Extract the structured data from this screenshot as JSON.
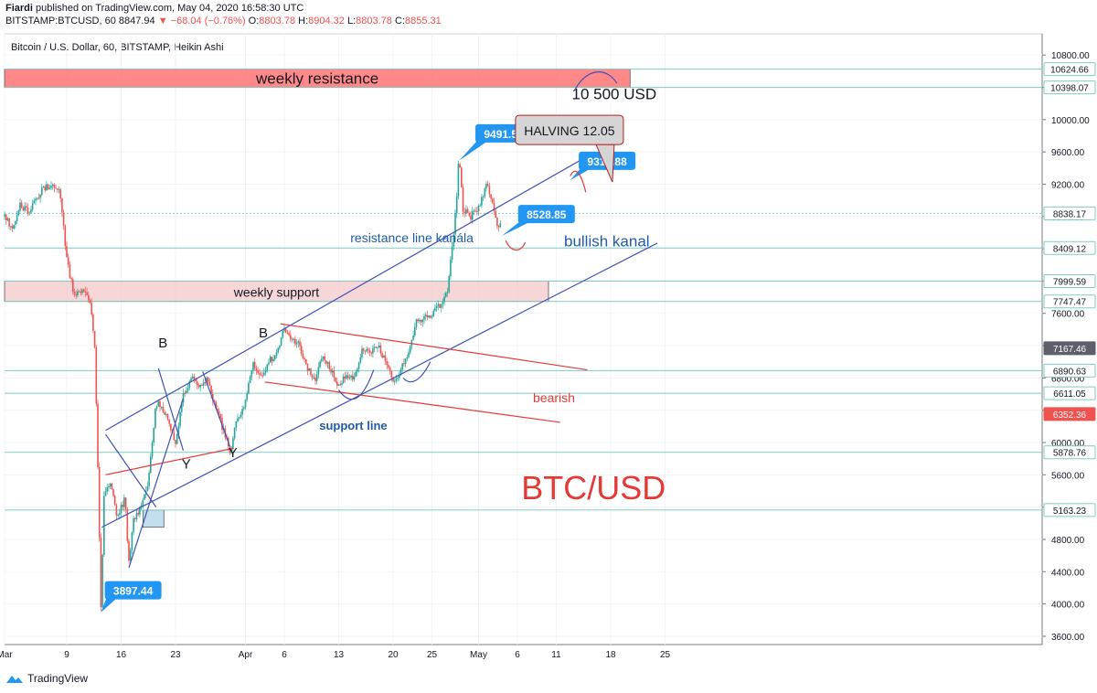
{
  "header": {
    "author": "Fiardi",
    "published": "published on TradingView.com, May 04, 2020 16:58:30 UTC",
    "symbol": "BITSTAMP:BTCUSD, 60",
    "last": "8847.94",
    "change": "▼ −68.04 (−0.76%)",
    "o_label": "O:",
    "o": "8803.78",
    "h_label": "H:",
    "h": "8904.32",
    "l_label": "L:",
    "l": "8803.78",
    "c_label": "C:",
    "c": "8855.31"
  },
  "footer": {
    "brand": "TradingView"
  },
  "chart_data": {
    "type": "candlestick",
    "title": "Bitcoin / U.S. Dollar, 60, BITSTAMP, Heikin Ashi",
    "colors": {
      "up": "#26a69a",
      "down": "#ef5350",
      "trend": "#3f51b5",
      "bear": "#e53935",
      "resistance": "#ff6b6b",
      "support": "#f4cccc",
      "level": "#80cbc4",
      "callout": "#2196f3"
    },
    "y_ticks": [
      3600,
      4000,
      4400,
      4800,
      5200,
      5600,
      6000,
      6400,
      6800,
      7200,
      7600,
      8000,
      8400,
      8800,
      9200,
      9600,
      10000,
      10400,
      10800
    ],
    "y_tick_labels": [
      "3600.00",
      "4000.00",
      "4400.00",
      "4800.00",
      "5200.00",
      "5600.00",
      "6000.00",
      "6400.00",
      "6800.00",
      "7200.00",
      "7600.00",
      "8000.00",
      "8400.00",
      "8800.00",
      "9200.00",
      "9600.00",
      "10000.00",
      "10400.00",
      "10800.00"
    ],
    "x_ticks": [
      {
        "day": 0,
        "label": "Mar"
      },
      {
        "day": 8,
        "label": "9"
      },
      {
        "day": 15,
        "label": "16"
      },
      {
        "day": 22,
        "label": "23"
      },
      {
        "day": 31,
        "label": "Apr"
      },
      {
        "day": 36,
        "label": "6"
      },
      {
        "day": 43,
        "label": "13"
      },
      {
        "day": 50,
        "label": "20"
      },
      {
        "day": 55,
        "label": "25"
      },
      {
        "day": 61,
        "label": "May"
      },
      {
        "day": 66,
        "label": "6"
      },
      {
        "day": 71,
        "label": "11"
      },
      {
        "day": 78,
        "label": "18"
      },
      {
        "day": 85,
        "label": "25"
      }
    ],
    "price_path": [
      [
        0,
        8800
      ],
      [
        1,
        8650
      ],
      [
        2,
        8950
      ],
      [
        3,
        8850
      ],
      [
        4,
        9000
      ],
      [
        5,
        9150
      ],
      [
        6,
        9200
      ],
      [
        7,
        9100
      ],
      [
        7.5,
        8800
      ],
      [
        8,
        8250
      ],
      [
        9,
        7800
      ],
      [
        10,
        7900
      ],
      [
        11,
        7750
      ],
      [
        11.6,
        7200
      ],
      [
        12,
        5700
      ],
      [
        12.4,
        3897
      ],
      [
        12.8,
        5300
      ],
      [
        13.5,
        5500
      ],
      [
        14.5,
        5100
      ],
      [
        15.5,
        5300
      ],
      [
        16,
        4500
      ],
      [
        16.5,
        5000
      ],
      [
        17.5,
        5200
      ],
      [
        18.5,
        5500
      ],
      [
        19.5,
        6500
      ],
      [
        20.5,
        6400
      ],
      [
        21.5,
        6100
      ],
      [
        22,
        6000
      ],
      [
        23,
        6600
      ],
      [
        24,
        6800
      ],
      [
        25,
        6700
      ],
      [
        26,
        6800
      ],
      [
        27,
        6500
      ],
      [
        28,
        6200
      ],
      [
        29,
        5900
      ],
      [
        30,
        6300
      ],
      [
        31,
        6500
      ],
      [
        32,
        7000
      ],
      [
        33,
        6800
      ],
      [
        34,
        7000
      ],
      [
        35,
        7100
      ],
      [
        36,
        7400
      ],
      [
        37,
        7300
      ],
      [
        38,
        7200
      ],
      [
        39,
        6900
      ],
      [
        40,
        6800
      ],
      [
        41,
        7100
      ],
      [
        42,
        6900
      ],
      [
        43,
        6700
      ],
      [
        44,
        6850
      ],
      [
        45,
        6800
      ],
      [
        46,
        7150
      ],
      [
        47,
        7100
      ],
      [
        48,
        7200
      ],
      [
        49,
        7000
      ],
      [
        50,
        6750
      ],
      [
        51,
        6900
      ],
      [
        52,
        7100
      ],
      [
        53,
        7500
      ],
      [
        54,
        7550
      ],
      [
        55,
        7600
      ],
      [
        56,
        7700
      ],
      [
        57,
        7850
      ],
      [
        58,
        8800
      ],
      [
        58.5,
        9491
      ],
      [
        59,
        8900
      ],
      [
        60,
        8800
      ],
      [
        61,
        8900
      ],
      [
        62,
        9200
      ],
      [
        63,
        8900
      ],
      [
        63.5,
        8620
      ],
      [
        64,
        8800
      ]
    ],
    "horizontal_levels": [
      {
        "price": 10624.66,
        "label": "10624.66",
        "color": "#80cbc4",
        "labelBg": "#ffffff",
        "labelFg": "#131722"
      },
      {
        "price": 10398.07,
        "label": "10398.07",
        "color": "#80cbc4",
        "labelBg": "#ffffff",
        "labelFg": "#131722"
      },
      {
        "price": 8838.17,
        "label": "8838.17",
        "color": "#80cbc4",
        "dashed": true,
        "labelBg": "#ffffff",
        "labelFg": "#131722"
      },
      {
        "price": 8409.12,
        "label": "8409.12",
        "color": "#80cbc4",
        "labelBg": "#ffffff",
        "labelFg": "#131722"
      },
      {
        "price": 7999.59,
        "label": "7999.59",
        "color": "#80cbc4",
        "labelBg": "#ffffff",
        "labelFg": "#131722"
      },
      {
        "price": 7747.47,
        "label": "7747.47",
        "color": "#80cbc4",
        "labelBg": "#ffffff",
        "labelFg": "#131722"
      },
      {
        "price": 7167.46,
        "label": "7167.46",
        "color": null,
        "labelBg": "#5d606b",
        "labelFg": "#ffffff"
      },
      {
        "price": 6890.63,
        "label": "6890.63",
        "color": "#80cbc4",
        "labelBg": "#ffffff",
        "labelFg": "#131722"
      },
      {
        "price": 6611.05,
        "label": "6611.05",
        "color": "#80cbc4",
        "labelBg": "#ffffff",
        "labelFg": "#131722"
      },
      {
        "price": 6352.36,
        "label": "6352.36",
        "color": null,
        "labelBg": "#ef5350",
        "labelFg": "#ffffff"
      },
      {
        "price": 5878.76,
        "label": "5878.76",
        "color": "#80cbc4",
        "labelBg": "#ffffff",
        "labelFg": "#131722"
      },
      {
        "price": 5163.23,
        "label": "5163.23",
        "color": "#80cbc4",
        "labelBg": "#ffffff",
        "labelFg": "#131722"
      }
    ],
    "zones": [
      {
        "name": "weekly resistance",
        "from_day": 0,
        "to_day": 80.5,
        "low": 10398.07,
        "high": 10624.66,
        "fill": "#ff6b6b",
        "text": "weekly resistance"
      },
      {
        "name": "weekly support",
        "from_day": 0,
        "to_day": 70,
        "low": 7747.47,
        "high": 7999.59,
        "fill": "#f4cccc",
        "text": "weekly support"
      },
      {
        "name": "base box",
        "from_day": 17.8,
        "to_day": 20.5,
        "low": 4950,
        "high": 5163.23,
        "fill": "#b3d4e8",
        "text": ""
      }
    ],
    "trend_lines": [
      {
        "name": "resistance line kanála",
        "points": [
          [
            13,
            6150
          ],
          [
            76,
            9600
          ]
        ],
        "color": "#3f51b5"
      },
      {
        "name": "support line",
        "points": [
          [
            12.5,
            4950
          ],
          [
            84,
            8470
          ]
        ],
        "color": "#3f51b5"
      },
      {
        "name": "bear-upper",
        "points": [
          [
            35.5,
            7470
          ],
          [
            75,
            6900
          ]
        ],
        "color": "#e53935"
      },
      {
        "name": "bear-lower",
        "points": [
          [
            33.5,
            6750
          ],
          [
            71.5,
            6250
          ]
        ],
        "color": "#e53935"
      },
      {
        "name": "mini-red",
        "points": [
          [
            13,
            5600
          ],
          [
            29.5,
            5930
          ]
        ],
        "color": "#e53935"
      },
      {
        "name": "mini-1",
        "points": [
          [
            13,
            6100
          ],
          [
            19.5,
            5200
          ]
        ],
        "color": "#3f51b5"
      },
      {
        "name": "mini-2",
        "points": [
          [
            16,
            4450
          ],
          [
            23,
            6550
          ]
        ],
        "color": "#3f51b5"
      },
      {
        "name": "mini-3",
        "points": [
          [
            19.8,
            6920
          ],
          [
            23,
            5900
          ]
        ],
        "color": "#3f51b5"
      },
      {
        "name": "mini-4",
        "points": [
          [
            25.5,
            6880
          ],
          [
            29,
            5950
          ]
        ],
        "color": "#3f51b5"
      }
    ],
    "annotations": [
      {
        "text": "B",
        "day": 19.8,
        "price": 7180,
        "color": "#131722",
        "size": 15
      },
      {
        "text": "B",
        "day": 32.7,
        "price": 7300,
        "color": "#131722",
        "size": 15
      },
      {
        "text": "Y",
        "day": 22.8,
        "price": 5680,
        "color": "#131722",
        "size": 15
      },
      {
        "text": "Y",
        "day": 28.8,
        "price": 5820,
        "color": "#131722",
        "size": 15
      },
      {
        "text": "10 500 USD",
        "day": 73,
        "price": 10250,
        "color": "#131722",
        "size": 17
      },
      {
        "text": "resistance line kanála",
        "day": 44.5,
        "price": 8480,
        "color": "#1e5ba8",
        "size": 14
      },
      {
        "text": "bullish kanal",
        "day": 72,
        "price": 8430,
        "color": "#1e5ba8",
        "size": 17
      },
      {
        "text": "support line",
        "day": 40.5,
        "price": 6160,
        "color": "#1e5ba8",
        "size": 13,
        "bold": true
      },
      {
        "text": "bearish",
        "day": 68,
        "price": 6500,
        "color": "#e53935",
        "size": 14
      },
      {
        "text": "BTC/USD",
        "day": 66.5,
        "price": 5300,
        "color": "#e53935",
        "size": 36
      }
    ],
    "callouts": [
      {
        "text": "3897.44",
        "day": 13.6,
        "price": 4170,
        "point": [
          12.4,
          3897
        ]
      },
      {
        "text": "9491.51",
        "day": 61.3,
        "price": 9830,
        "point": [
          58.5,
          9491
        ]
      },
      {
        "text": "8528.85",
        "day": 66.8,
        "price": 8830,
        "point": [
          64,
          8560
        ]
      },
      {
        "text": "9318.88",
        "day": 74.6,
        "price": 9490,
        "point": [
          72.8,
          9250
        ]
      }
    ],
    "halving_box": {
      "text": "HALVING 12.05",
      "day": 71.4,
      "price": 9850
    }
  }
}
